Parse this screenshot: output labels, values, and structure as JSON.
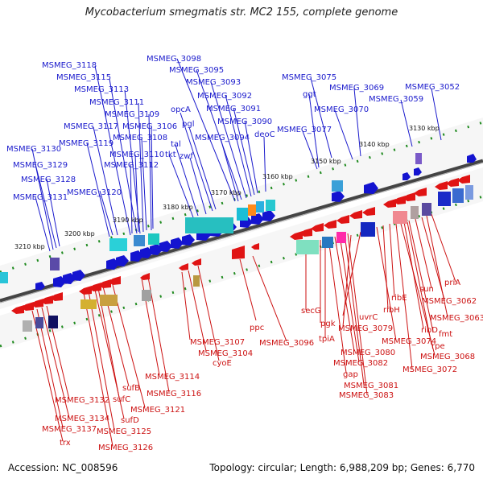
{
  "title": "Mycobacterium smegmatis str. MC2 155, complete genome",
  "accession": "Accession: NC_008596",
  "summary": "Topology: circular; Length: 6,988,209 bp; Genes: 6,770",
  "colors": {
    "forward_strand": "#1a1acc",
    "reverse_strand": "#cc1111",
    "backbone": "#555555",
    "ticks": "#1e8a1e"
  },
  "scale_labels": [
    "3130 kbp",
    "3140 kbp",
    "3150 kbp",
    "3160 kbp",
    "3170 kbp",
    "3180 kbp",
    "3190 kbp",
    "3200 kbp",
    "3210 kbp"
  ],
  "forward_genes": [
    "MSMEG_3118",
    "MSMEG_3115",
    "MSMEG_3113",
    "MSMEG_3111",
    "MSMEG_3109",
    "MSMEG_3117",
    "MSMEG_3106",
    "MSMEG_3108",
    "MSMEG_3119",
    "MSMEG_3110",
    "MSMEG_3112",
    "MSMEG_3130",
    "MSMEG_3129",
    "MSMEG_3128",
    "MSMEG_3120",
    "MSMEG_3131",
    "MSMEG_3098",
    "MSMEG_3095",
    "MSMEG_3093",
    "MSMEG_3092",
    "MSMEG_3091",
    "MSMEG_3090",
    "MSMEG_3094",
    "opcA",
    "pgl",
    "tal",
    "tkt",
    "zwf",
    "deoC",
    "MSMEG_3075",
    "MSMEG_3069",
    "MSMEG_3070",
    "MSMEG_3077",
    "ggt",
    "MSMEG_3059",
    "MSMEG_3052"
  ],
  "reverse_genes": [
    "priA",
    "sun",
    "MSMEG_3062",
    "MSMEG_3063",
    "fmt",
    "ribD",
    "rpe",
    "MSMEG_3068",
    "ribE",
    "ribH",
    "MSMEG_3074",
    "uvrC",
    "MSMEG_3079",
    "secG",
    "pgk",
    "tpiA",
    "MSMEG_3080",
    "MSMEG_3082",
    "gap",
    "MSMEG_3081",
    "MSMEG_3083",
    "MSMEG_3072",
    "ppc",
    "MSMEG_3096",
    "MSMEG_3107",
    "MSMEG_3104",
    "cyoE",
    "MSMEG_3114",
    "MSMEG_3116",
    "sufB",
    "sufC",
    "MSMEG_3121",
    "sufD",
    "MSMEG_3125",
    "MSMEG_3126",
    "MSMEG_3132",
    "MSMEG_3134",
    "MSMEG_3137",
    "trx"
  ]
}
